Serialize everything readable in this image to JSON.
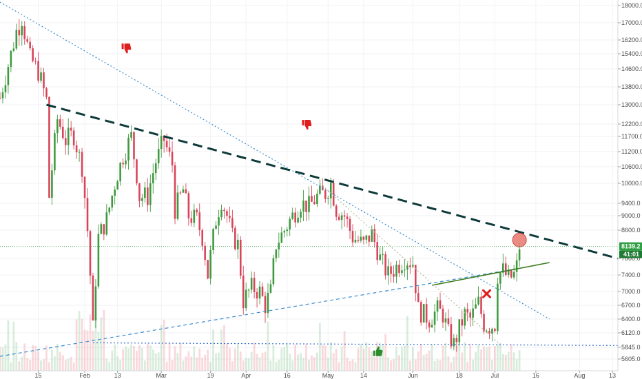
{
  "chart_data": {
    "type": "candlestick",
    "title": "",
    "xlabel": "",
    "ylabel": "",
    "ylim": [
      5400,
      18200
    ],
    "y_ticks": [
      18000,
      17000,
      16200,
      15400,
      14600,
      13800,
      13000,
      12200,
      11700,
      11200,
      10600,
      10000,
      9400,
      9000,
      8600,
      7800,
      7400,
      7000,
      6700,
      6400,
      6120,
      5845,
      5605
    ],
    "y_tick_labels": [
      "18000.0",
      "17000.0",
      "16200.0",
      "15400.0",
      "14600.0",
      "13800.0",
      "13000.0",
      "12200.0",
      "11700.0",
      "11200.0",
      "10600.0",
      "10000.0",
      "9400.0",
      "9000.0",
      "8600.0",
      "7800.0",
      "7400.0",
      "7000.0",
      "6700.0",
      "6400.0",
      "6120.0",
      "5845.0",
      "5605.0"
    ],
    "x_ticks": [
      "15",
      "Feb",
      "13",
      "Mar",
      "19",
      "Apr",
      "16",
      "May",
      "14",
      "Jun",
      "18",
      "Jul",
      "16",
      "Aug",
      "13"
    ],
    "x_tick_day": [
      15,
      32,
      44,
      60,
      78,
      91,
      106,
      121,
      134,
      152,
      169,
      182,
      197,
      213,
      225
    ],
    "x_range_day": [
      1,
      227
    ],
    "current_price": {
      "label": "8139.2",
      "value": 8139.2,
      "color": "#2ea043"
    },
    "countdown_label": "41:01",
    "close_path": [
      [
        1,
        13300
      ],
      [
        4,
        14800
      ],
      [
        7,
        16600
      ],
      [
        9,
        17300
      ],
      [
        12,
        15200
      ],
      [
        15,
        14500
      ],
      [
        18,
        13200
      ],
      [
        19,
        9600
      ],
      [
        22,
        12400
      ],
      [
        25,
        11600
      ],
      [
        28,
        11800
      ],
      [
        31,
        10600
      ],
      [
        33,
        8600
      ],
      [
        35,
        6200
      ],
      [
        37,
        8400
      ],
      [
        40,
        8900
      ],
      [
        43,
        10000
      ],
      [
        46,
        11000
      ],
      [
        49,
        11700
      ],
      [
        52,
        9600
      ],
      [
        55,
        9600
      ],
      [
        58,
        10800
      ],
      [
        61,
        11600
      ],
      [
        64,
        10700
      ],
      [
        65,
        9200
      ],
      [
        68,
        9800
      ],
      [
        70,
        9000
      ],
      [
        73,
        8900
      ],
      [
        75,
        8400
      ],
      [
        77,
        7400
      ],
      [
        80,
        8900
      ],
      [
        82,
        9500
      ],
      [
        84,
        9000
      ],
      [
        86,
        8400
      ],
      [
        88,
        8200
      ],
      [
        90,
        6800
      ],
      [
        93,
        7100
      ],
      [
        96,
        7000
      ],
      [
        98,
        6700
      ],
      [
        100,
        7000
      ],
      [
        102,
        8200
      ],
      [
        105,
        8600
      ],
      [
        108,
        9000
      ],
      [
        111,
        9400
      ],
      [
        114,
        9300
      ],
      [
        117,
        9600
      ],
      [
        120,
        9700
      ],
      [
        122,
        10000
      ],
      [
        124,
        9200
      ],
      [
        127,
        9000
      ],
      [
        130,
        8400
      ],
      [
        134,
        8200
      ],
      [
        137,
        8500
      ],
      [
        140,
        7800
      ],
      [
        143,
        7400
      ],
      [
        146,
        7600
      ],
      [
        149,
        7800
      ],
      [
        152,
        7700
      ],
      [
        154,
        6600
      ],
      [
        156,
        6500
      ],
      [
        158,
        6400
      ],
      [
        161,
        6600
      ],
      [
        163,
        6500
      ],
      [
        165,
        6100
      ],
      [
        167,
        5900
      ],
      [
        169,
        6200
      ],
      [
        171,
        6500
      ],
      [
        173,
        6400
      ],
      [
        176,
        6750
      ],
      [
        178,
        6300
      ],
      [
        180,
        6250
      ],
      [
        182,
        6300
      ],
      [
        183,
        7400
      ],
      [
        185,
        7500
      ],
      [
        187,
        7300
      ],
      [
        189,
        7400
      ],
      [
        190,
        7600
      ],
      [
        191,
        8139
      ]
    ],
    "trendlines": [
      {
        "name": "upper-resistance-thin",
        "style": "dotted",
        "color": "#3a8cd0",
        "points": [
          [
            1,
            18200
          ],
          [
            202,
            6400
          ]
        ]
      },
      {
        "name": "main-resistance-thick",
        "style": "dashed",
        "color": "#0e3a3a",
        "points": [
          [
            18,
            13000
          ],
          [
            227,
            7800
          ]
        ]
      },
      {
        "name": "rising-support",
        "style": "dashed",
        "color": "#3a8cd0",
        "points": [
          [
            1,
            5660
          ],
          [
            190,
            7550
          ]
        ]
      },
      {
        "name": "breakout-line",
        "style": "solid",
        "color": "#3d7a1e",
        "points": [
          [
            159,
            7150
          ],
          [
            202,
            7700
          ]
        ]
      },
      {
        "name": "horizontal-support",
        "style": "dotted",
        "color": "#3a6fd0",
        "points": [
          [
            35,
            5930
          ],
          [
            227,
            5880
          ]
        ]
      },
      {
        "name": "minor-descending",
        "style": "dotted",
        "color": "#b8b89a",
        "points": [
          [
            118,
            10000
          ],
          [
            184,
            5900
          ]
        ]
      }
    ],
    "markers": [
      {
        "name": "thumbs-down-icon",
        "day": 47,
        "value": 15750,
        "color": "#e01e1e"
      },
      {
        "name": "thumbs-down-icon",
        "day": 113,
        "value": 12200,
        "color": "#e01e1e"
      },
      {
        "name": "thumbs-up-icon",
        "day": 139,
        "value": 5750,
        "color": "#2e8b2e"
      },
      {
        "name": "cross-icon",
        "day": 179,
        "value": 6950,
        "color": "#e01e1e"
      },
      {
        "name": "highlight-circle",
        "day": 191,
        "value": 8320,
        "color": "#e8786e"
      }
    ]
  }
}
